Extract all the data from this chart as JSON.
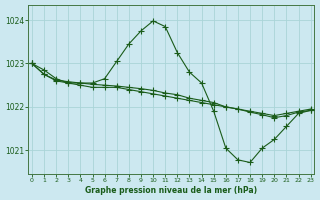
{
  "title": "Graphe pression niveau de la mer (hPa)",
  "bg_color": "#cce8f0",
  "grid_color": "#aad4d8",
  "line_color": "#1a5c1a",
  "xlim": [
    -0.3,
    23.3
  ],
  "ylim": [
    1020.45,
    1024.35
  ],
  "yticks": [
    1021,
    1022,
    1023,
    1024
  ],
  "xticks": [
    0,
    1,
    2,
    3,
    4,
    5,
    6,
    7,
    8,
    9,
    10,
    11,
    12,
    13,
    14,
    15,
    16,
    17,
    18,
    19,
    20,
    21,
    22,
    23
  ],
  "series1_x": [
    0,
    1,
    2,
    3,
    4,
    5,
    6,
    7,
    8,
    9,
    10,
    11,
    12,
    13,
    14,
    15,
    16,
    17,
    18,
    19,
    20,
    21,
    22,
    23
  ],
  "series1_y": [
    1023.0,
    1022.85,
    1022.65,
    1022.55,
    1022.5,
    1022.45,
    1022.45,
    1022.45,
    1022.4,
    1022.35,
    1022.3,
    1022.25,
    1022.2,
    1022.15,
    1022.1,
    1022.05,
    1022.0,
    1021.95,
    1021.9,
    1021.85,
    1021.8,
    1021.85,
    1021.9,
    1021.95
  ],
  "series2_x": [
    0,
    1,
    2,
    3,
    4,
    5,
    6,
    7,
    8,
    9,
    10,
    11,
    12,
    13,
    14,
    15,
    16,
    17,
    18,
    19,
    20,
    21,
    22,
    23
  ],
  "series2_y": [
    1023.0,
    1022.75,
    1022.62,
    1022.58,
    1022.55,
    1022.52,
    1022.5,
    1022.48,
    1022.45,
    1022.42,
    1022.38,
    1022.32,
    1022.28,
    1022.2,
    1022.15,
    1022.1,
    1022.0,
    1021.95,
    1021.88,
    1021.82,
    1021.75,
    1021.8,
    1021.88,
    1021.92
  ],
  "series3_x": [
    0,
    1,
    2,
    3,
    4,
    5,
    6,
    7,
    8,
    9,
    10,
    11,
    12,
    13,
    14,
    15,
    16,
    17,
    18,
    19,
    20,
    21,
    22,
    23
  ],
  "series3_y": [
    1023.0,
    1022.75,
    1022.6,
    1022.55,
    1022.55,
    1022.55,
    1022.65,
    1023.05,
    1023.45,
    1023.75,
    1023.98,
    1023.85,
    1023.25,
    1022.8,
    1022.55,
    1021.9,
    1021.05,
    1020.78,
    1020.72,
    1021.05,
    1021.25,
    1021.55,
    1021.85,
    1021.92
  ]
}
